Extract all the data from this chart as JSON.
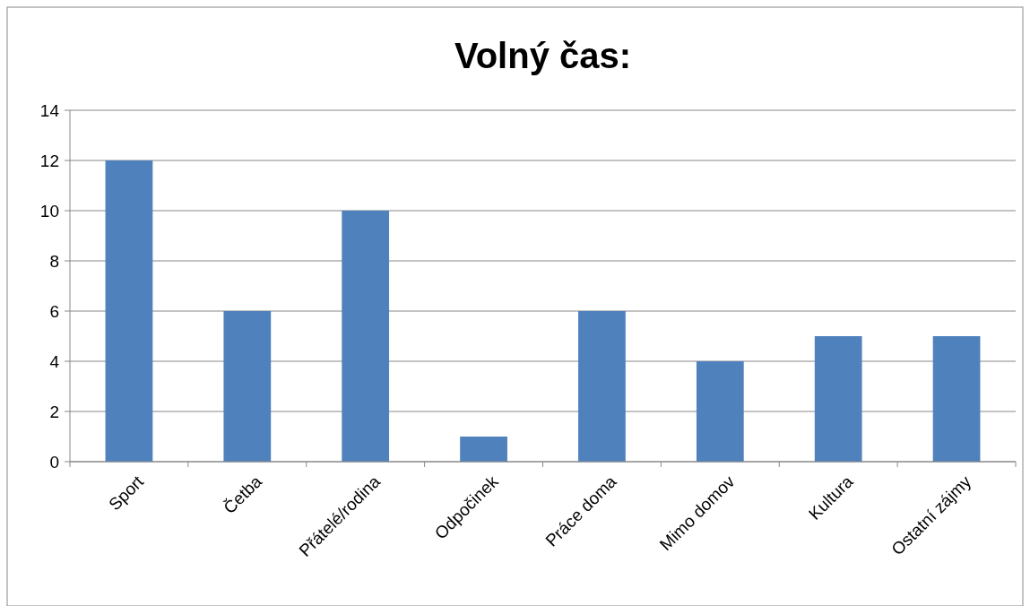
{
  "chart_data": {
    "type": "bar",
    "title": "Volný čas:",
    "categories": [
      "Sport",
      "Četba",
      "Přátelé/rodina",
      "Odpočinek",
      "Práce doma",
      "Mimo domov",
      "Kultura",
      "Ostatní zájmy"
    ],
    "values": [
      12,
      6,
      10,
      1,
      6,
      4,
      5,
      5
    ],
    "color": "#4f81bd",
    "ylim": [
      0,
      14
    ],
    "yticks": [
      0,
      2,
      4,
      6,
      8,
      10,
      12,
      14
    ],
    "grid": "y"
  }
}
